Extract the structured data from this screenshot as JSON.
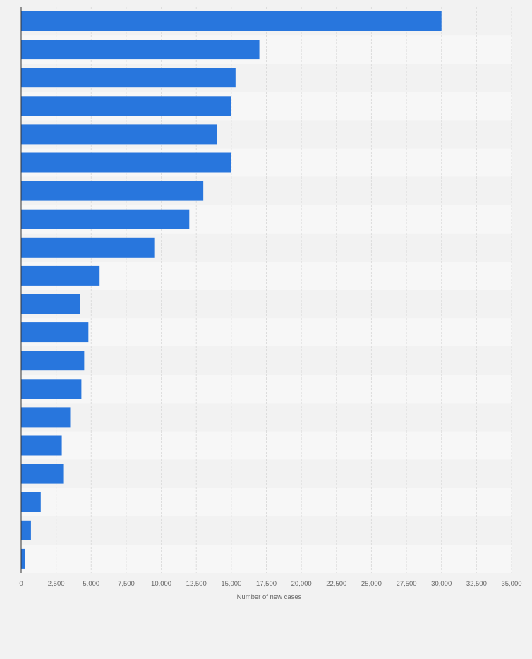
{
  "chart_data": {
    "type": "bar",
    "orientation": "horizontal",
    "categories": [
      "",
      "",
      "",
      "",
      "",
      "",
      "",
      "",
      "",
      "",
      "",
      "",
      "",
      "",
      "",
      "",
      "",
      "",
      "",
      ""
    ],
    "values": [
      30000,
      17000,
      15300,
      15000,
      14000,
      15000,
      13000,
      12000,
      9500,
      5600,
      4200,
      4800,
      4500,
      4300,
      3500,
      2900,
      3000,
      1400,
      700,
      300
    ],
    "xlabel": "Number of new cases",
    "ylabel": "",
    "xlim": [
      0,
      35000
    ],
    "xticks": [
      0,
      2500,
      5000,
      7500,
      10000,
      12500,
      15000,
      17500,
      20000,
      22500,
      25000,
      27500,
      30000,
      32500,
      35000
    ],
    "xtick_labels": [
      "0",
      "2,500",
      "5,000",
      "7,500",
      "10,000",
      "12,500",
      "15,000",
      "17,500",
      "20,000",
      "22,500",
      "25,000",
      "27,500",
      "30,000",
      "32,500",
      "35,000"
    ],
    "grid": true,
    "legend": "none",
    "colors": {
      "bar": "#2876dd",
      "band_light": "#f7f7f7",
      "band_dark": "#f2f2f2",
      "grid": "#dcdcdc",
      "axis": "#333333",
      "tick_text": "#666666"
    }
  }
}
